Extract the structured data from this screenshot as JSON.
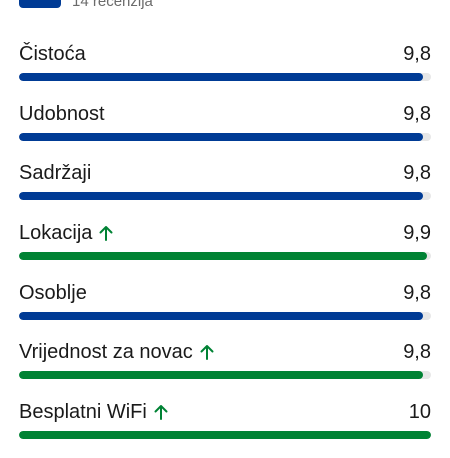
{
  "header": {
    "review_count": "14 recenzija",
    "badge_color": "#003b95"
  },
  "ratings": [
    {
      "label": "Čistoća",
      "score": "9,8",
      "value": 9.8,
      "max": 10,
      "color": "#003b95",
      "trend_up": false
    },
    {
      "label": "Udobnost",
      "score": "9,8",
      "value": 9.8,
      "max": 10,
      "color": "#003b95",
      "trend_up": false
    },
    {
      "label": "Sadržaji",
      "score": "9,8",
      "value": 9.8,
      "max": 10,
      "color": "#003b95",
      "trend_up": false
    },
    {
      "label": "Lokacija",
      "score": "9,9",
      "value": 9.9,
      "max": 10,
      "color": "#008234",
      "trend_up": true
    },
    {
      "label": "Osoblje",
      "score": "9,8",
      "value": 9.8,
      "max": 10,
      "color": "#003b95",
      "trend_up": false
    },
    {
      "label": "Vrijednost za novac",
      "score": "9,8",
      "value": 9.8,
      "max": 10,
      "color": "#008234",
      "trend_up": true
    },
    {
      "label": "Besplatni WiFi",
      "score": "10",
      "value": 10,
      "max": 10,
      "color": "#008234",
      "trend_up": true
    }
  ],
  "icons": {
    "trend": "arrow-up-icon",
    "trend_color": "#008234"
  }
}
